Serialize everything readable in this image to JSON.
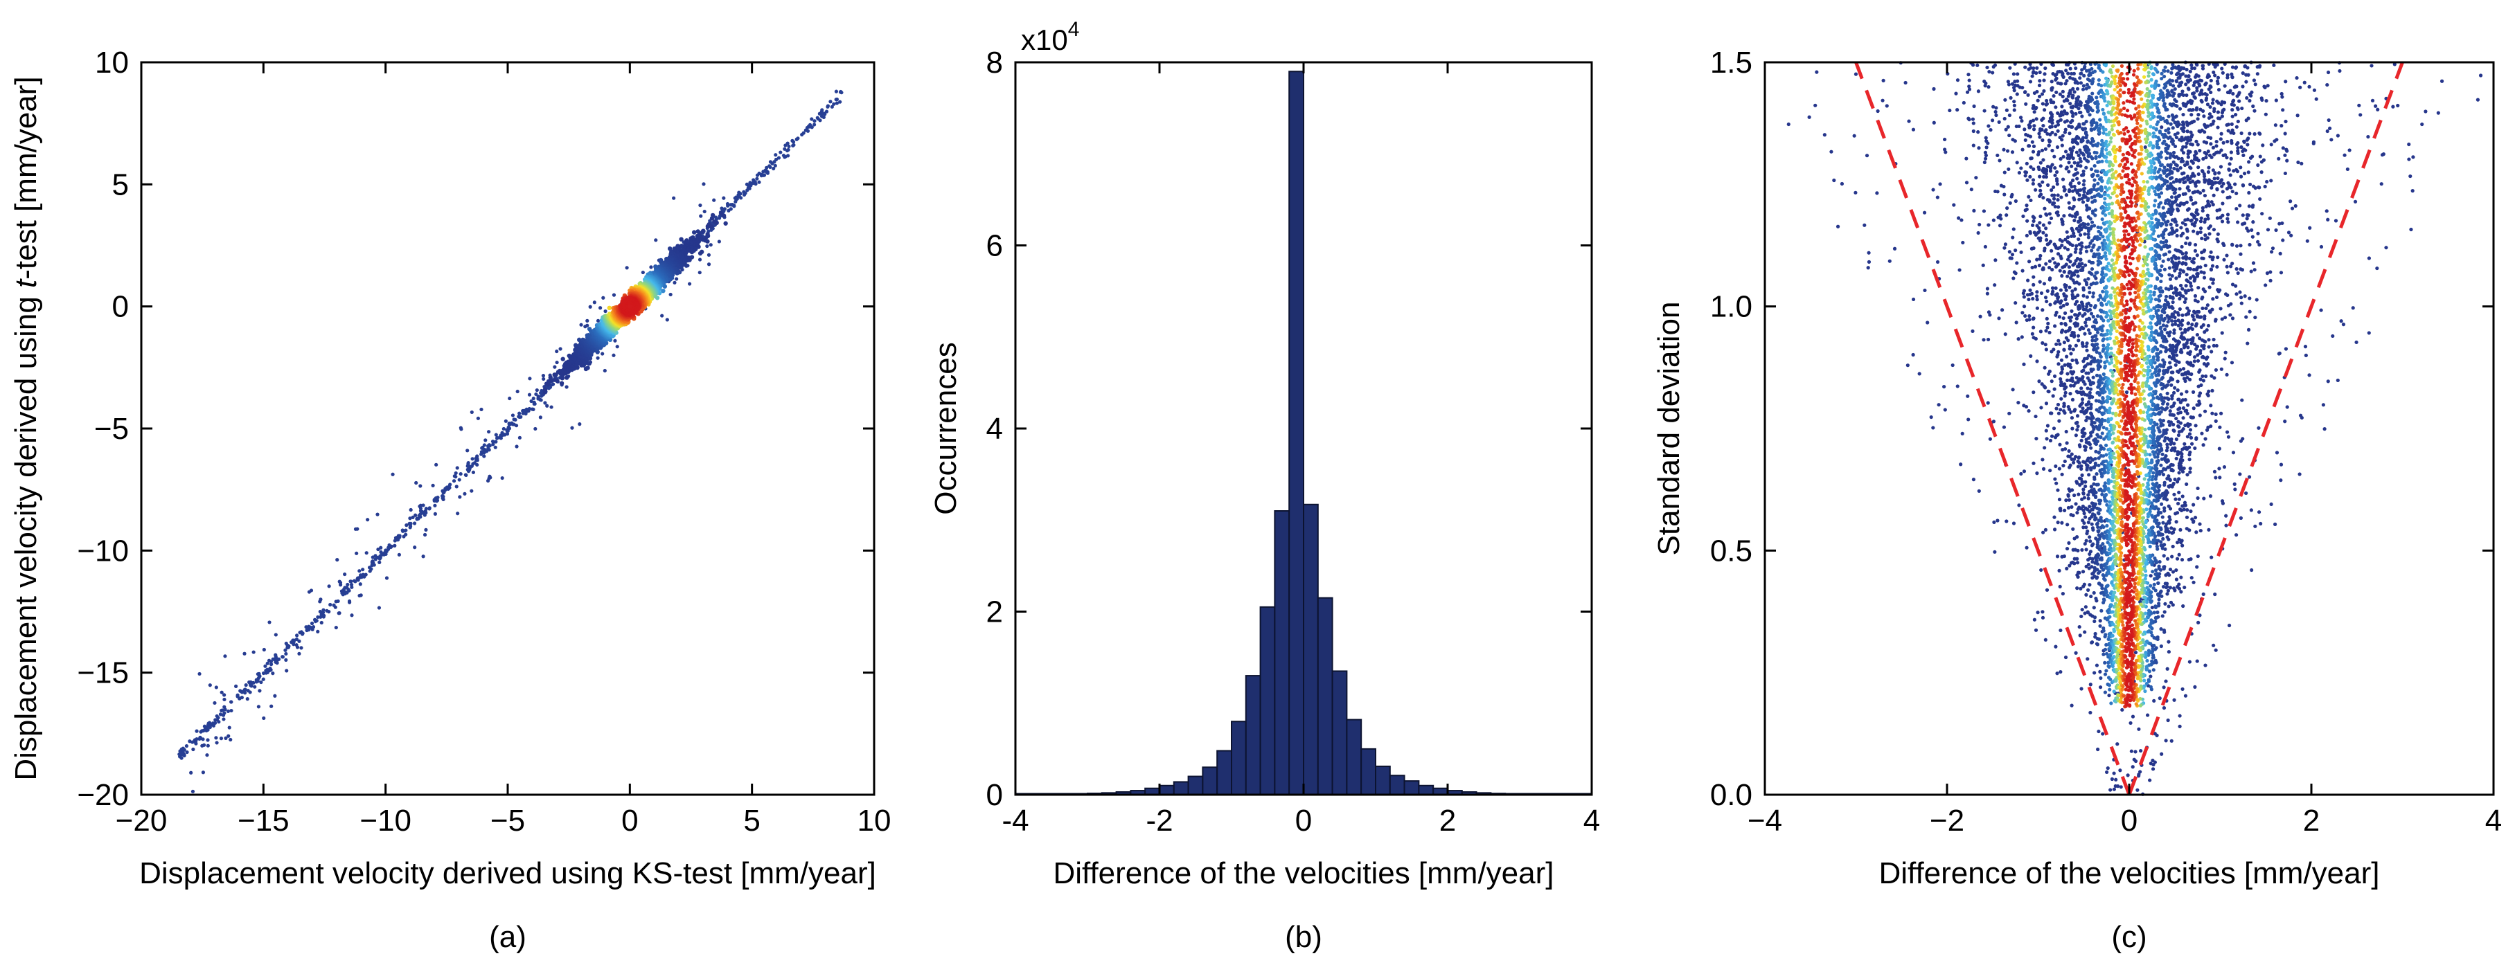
{
  "panels": {
    "a": {
      "caption": "(a)",
      "chart_data": {
        "type": "scatter",
        "title": "",
        "xlabel": "Displacement velocity derived using KS-test [mm/year]",
        "ylabel_pre": "Displacement velocity derived using ",
        "ylabel_italic": "t",
        "ylabel_post": "-test [mm/year]",
        "xlim": [
          -20,
          10
        ],
        "ylim": [
          -20,
          10
        ],
        "xticks": [
          -20,
          -15,
          -10,
          -5,
          0,
          5,
          10
        ],
        "yticks": [
          -20,
          -15,
          -10,
          -5,
          0,
          5,
          10
        ],
        "xtick_labels": [
          "−20",
          "−15",
          "−10",
          "−5",
          "0",
          "5",
          "10"
        ],
        "ytick_labels": [
          "−20",
          "−15",
          "−10",
          "−5",
          "0",
          "5",
          "10"
        ],
        "description": "density-coloured point cloud centred at (0, 0) with spread about ±2.5; points along the line y = x from about −18.5 to 8.7",
        "cluster_center": [
          0,
          0
        ],
        "line_range": [
          -18.5,
          8.7
        ]
      }
    },
    "b": {
      "caption": "(b)",
      "chart_data": {
        "type": "bar",
        "title": "",
        "xlabel": "Difference of the velocities [mm/year]",
        "ylabel": "Occurrences",
        "y_multiplier": "x10",
        "y_exponent": "4",
        "xlim": [
          -4,
          4
        ],
        "ylim": [
          0,
          8
        ],
        "xticks": [
          -4,
          -2,
          0,
          2,
          4
        ],
        "yticks": [
          0,
          2,
          4,
          6,
          8
        ],
        "xtick_labels": [
          "-4",
          "-2",
          "0",
          "2",
          "4"
        ],
        "ytick_labels": [
          "0",
          "2",
          "4",
          "6",
          "8"
        ],
        "bin_width": 0.2,
        "bin_centers": [
          -3.9,
          -3.7,
          -3.5,
          -3.3,
          -3.1,
          -2.9,
          -2.7,
          -2.5,
          -2.3,
          -2.1,
          -1.9,
          -1.7,
          -1.5,
          -1.3,
          -1.1,
          -0.9,
          -0.7,
          -0.5,
          -0.3,
          -0.1,
          0.1,
          0.3,
          0.5,
          0.7,
          0.9,
          1.1,
          1.3,
          1.5,
          1.7,
          1.9,
          2.1,
          2.3,
          2.5,
          2.7,
          2.9,
          3.1,
          3.3,
          3.5,
          3.7,
          3.9
        ],
        "values": [
          0.003,
          0.004,
          0.005,
          0.007,
          0.01,
          0.015,
          0.02,
          0.03,
          0.045,
          0.07,
          0.1,
          0.14,
          0.2,
          0.3,
          0.48,
          0.8,
          1.3,
          2.05,
          3.1,
          7.9,
          3.17,
          2.15,
          1.35,
          0.82,
          0.5,
          0.31,
          0.21,
          0.15,
          0.1,
          0.07,
          0.045,
          0.03,
          0.02,
          0.014,
          0.01,
          0.007,
          0.005,
          0.004,
          0.003,
          0.002
        ]
      }
    },
    "c": {
      "caption": "(c)",
      "chart_data": {
        "type": "scatter",
        "title": "",
        "xlabel": "Difference of the velocities [mm/year]",
        "ylabel": "Standard deviation",
        "xlim": [
          -4,
          4
        ],
        "ylim": [
          0,
          1.5
        ],
        "xticks": [
          -4,
          -2,
          0,
          2,
          4
        ],
        "yticks": [
          0,
          0.5,
          1.0,
          1.5
        ],
        "xtick_labels": [
          "−4",
          "−2",
          "0",
          "2",
          "4"
        ],
        "ytick_labels": [
          "0.0",
          "0.5",
          "1.0",
          "1.5"
        ],
        "description": "density-coloured scatter, funnel shaped, dense core along x = 0 for all standard deviations",
        "bound_lines": [
          {
            "style": "dashed",
            "color": "#e8262a",
            "x": [
              0,
              -3
            ],
            "y": [
              0,
              1.5
            ]
          },
          {
            "style": "dashed",
            "color": "#e8262a",
            "x": [
              0,
              3
            ],
            "y": [
              0,
              1.5
            ]
          }
        ]
      }
    }
  },
  "colors": {
    "axis": "#000000",
    "bar_fill": "#1f2f6e",
    "bar_edge": "#0c1330",
    "dashed_line": "#e8262a",
    "density_low": "#2a3b8f",
    "density_mid": "#3bb7e8",
    "density_high": "#d7191c"
  }
}
